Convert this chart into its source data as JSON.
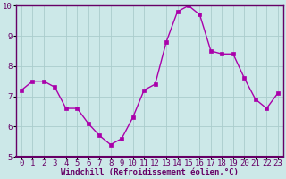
{
  "x": [
    0,
    1,
    2,
    3,
    4,
    5,
    6,
    7,
    8,
    9,
    10,
    11,
    12,
    13,
    14,
    15,
    16,
    17,
    18,
    19,
    20,
    21,
    22,
    23
  ],
  "y": [
    7.2,
    7.5,
    7.5,
    7.3,
    6.6,
    6.6,
    6.1,
    5.7,
    5.4,
    5.6,
    6.3,
    7.2,
    7.4,
    8.8,
    9.8,
    10.0,
    9.7,
    8.5,
    8.4,
    8.4,
    7.6,
    6.9,
    6.6,
    7.1
  ],
  "line_color": "#aa00aa",
  "marker_color": "#aa00aa",
  "bg_color": "#cce8e8",
  "grid_color": "#aacccc",
  "axis_color": "#660066",
  "spine_color": "#660066",
  "xlabel": "Windchill (Refroidissement éolien,°C)",
  "ylim": [
    5,
    10
  ],
  "xlim_min": -0.5,
  "xlim_max": 23.5,
  "yticks": [
    5,
    6,
    7,
    8,
    9,
    10
  ],
  "xticks": [
    0,
    1,
    2,
    3,
    4,
    5,
    6,
    7,
    8,
    9,
    10,
    11,
    12,
    13,
    14,
    15,
    16,
    17,
    18,
    19,
    20,
    21,
    22,
    23
  ],
  "tick_fontsize": 6.5,
  "xlabel_fontsize": 6.5,
  "marker_size": 2.5,
  "line_width": 1.0
}
